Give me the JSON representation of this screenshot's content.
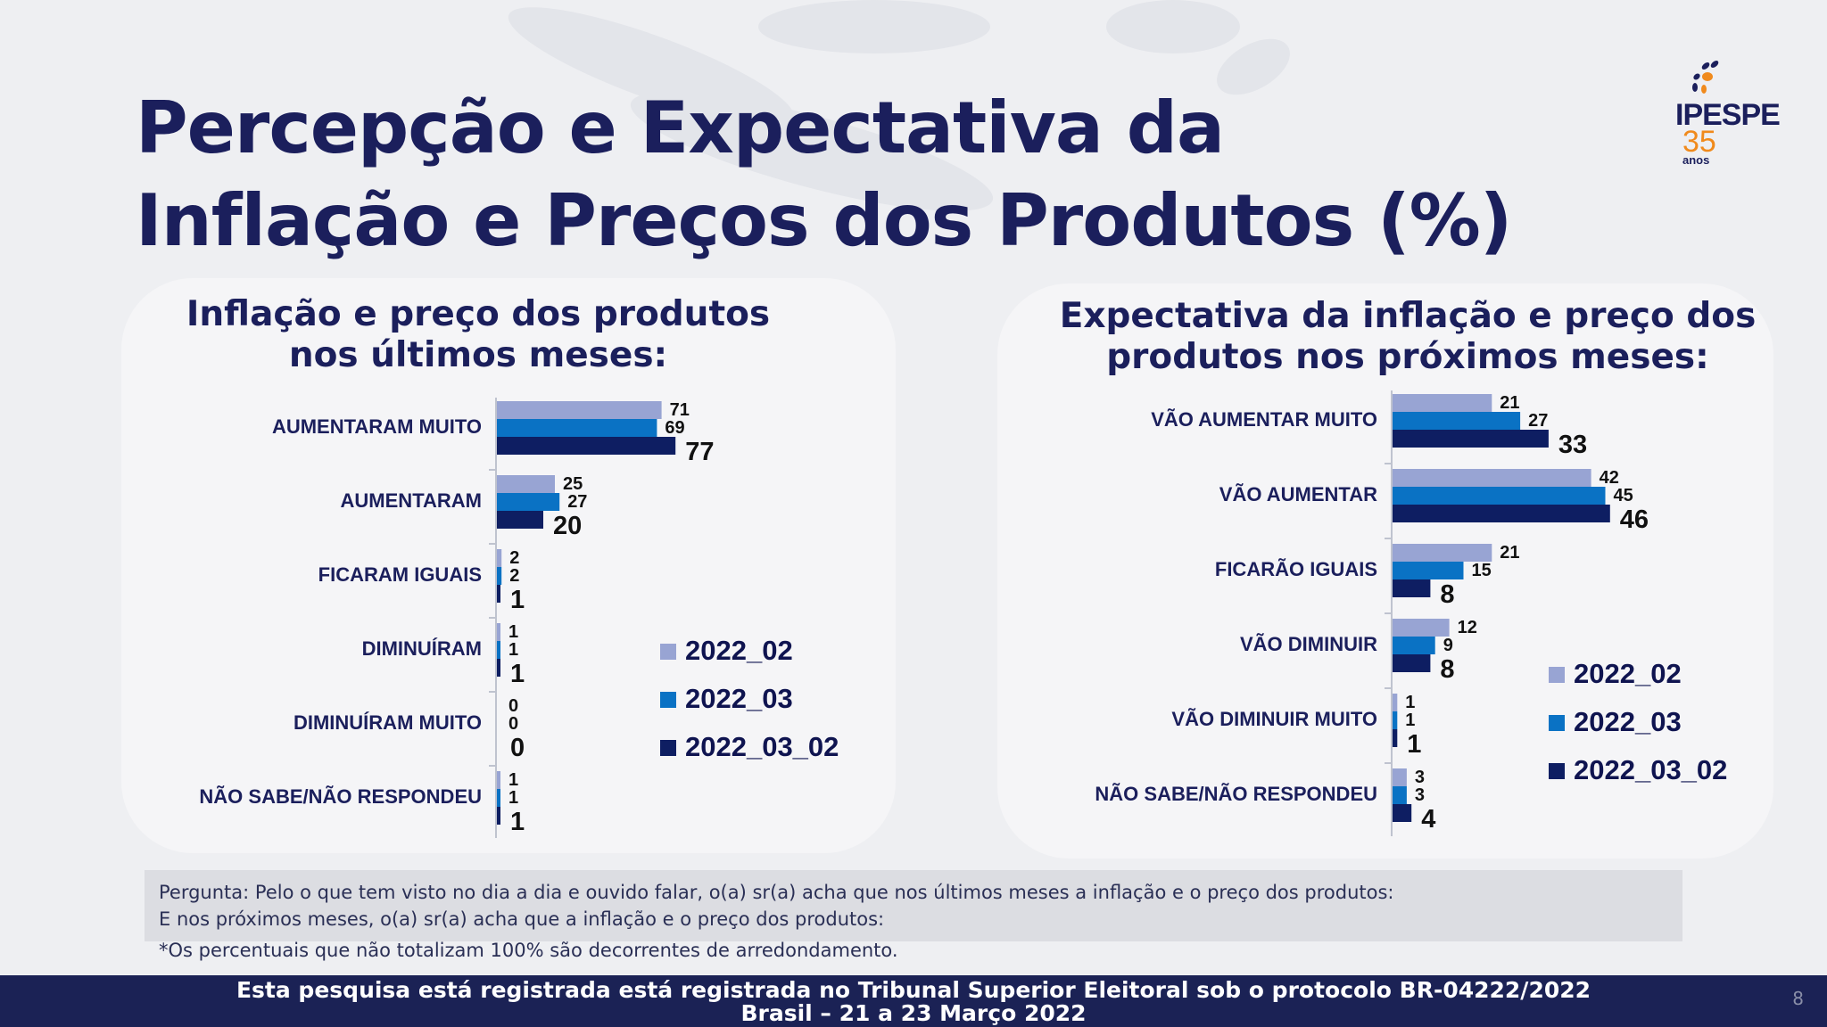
{
  "title_line1": "Percepção e Expectativa da",
  "title_line2": "Inflação e Preços dos Produtos (%)",
  "logo": {
    "name": "IPESPE",
    "number": "35",
    "sub": "anos"
  },
  "colors": {
    "2022_02": "#98a4d3",
    "2022_03": "#0a72c4",
    "2022_03_02": "#0e1e62"
  },
  "chart_data": [
    {
      "type": "bar",
      "orientation": "horizontal",
      "title_line1": "Inflação e preço dos produtos",
      "title_line2": "nos últimos meses:",
      "categories": [
        "AUMENTARAM MUITO",
        "AUMENTARAM",
        "FICARAM IGUAIS",
        "DIMINUÍRAM",
        "DIMINUÍRAM MUITO",
        "NÃO SABE/NÃO RESPONDEU"
      ],
      "series": [
        {
          "name": "2022_02",
          "values": [
            71,
            25,
            2,
            1,
            0,
            1
          ]
        },
        {
          "name": "2022_03",
          "values": [
            69,
            27,
            2,
            1,
            0,
            1
          ]
        },
        {
          "name": "2022_03_02",
          "values": [
            77,
            20,
            1,
            1,
            0,
            1
          ]
        }
      ],
      "xlim": [
        0,
        100
      ],
      "legend_position": "bottom-right"
    },
    {
      "type": "bar",
      "orientation": "horizontal",
      "title_line1": "Expectativa da inflação e preço dos",
      "title_line2": "produtos nos próximos meses:",
      "categories": [
        "VÃO AUMENTAR MUITO",
        "VÃO AUMENTAR",
        "FICARÃO IGUAIS",
        "VÃO DIMINUIR",
        "VÃO DIMINUIR MUITO",
        "NÃO SABE/NÃO RESPONDEU"
      ],
      "series": [
        {
          "name": "2022_02",
          "values": [
            21,
            42,
            21,
            12,
            1,
            3
          ]
        },
        {
          "name": "2022_03",
          "values": [
            27,
            45,
            15,
            9,
            1,
            3
          ]
        },
        {
          "name": "2022_03_02",
          "values": [
            33,
            46,
            8,
            8,
            1,
            4
          ]
        }
      ],
      "xlim": [
        0,
        50
      ],
      "legend_position": "bottom-right"
    }
  ],
  "question_line1": "Pergunta:  Pelo o que tem visto no dia a dia e ouvido falar, o(a) sr(a) acha que nos últimos meses a inflação e o preço dos produtos:",
  "question_line2": "E nos próximos meses, o(a) sr(a) acha que a inflação e o preço dos produtos:",
  "footnote": "*Os percentuais que não totalizam 100% são decorrentes de arredondamento.",
  "footer_line1": "Esta pesquisa está registrada está registrada no Tribunal Superior Eleitoral sob o protocolo BR-04222/2022",
  "footer_line2": "Brasil – 21 a 23 Março 2022",
  "page_number": "8"
}
